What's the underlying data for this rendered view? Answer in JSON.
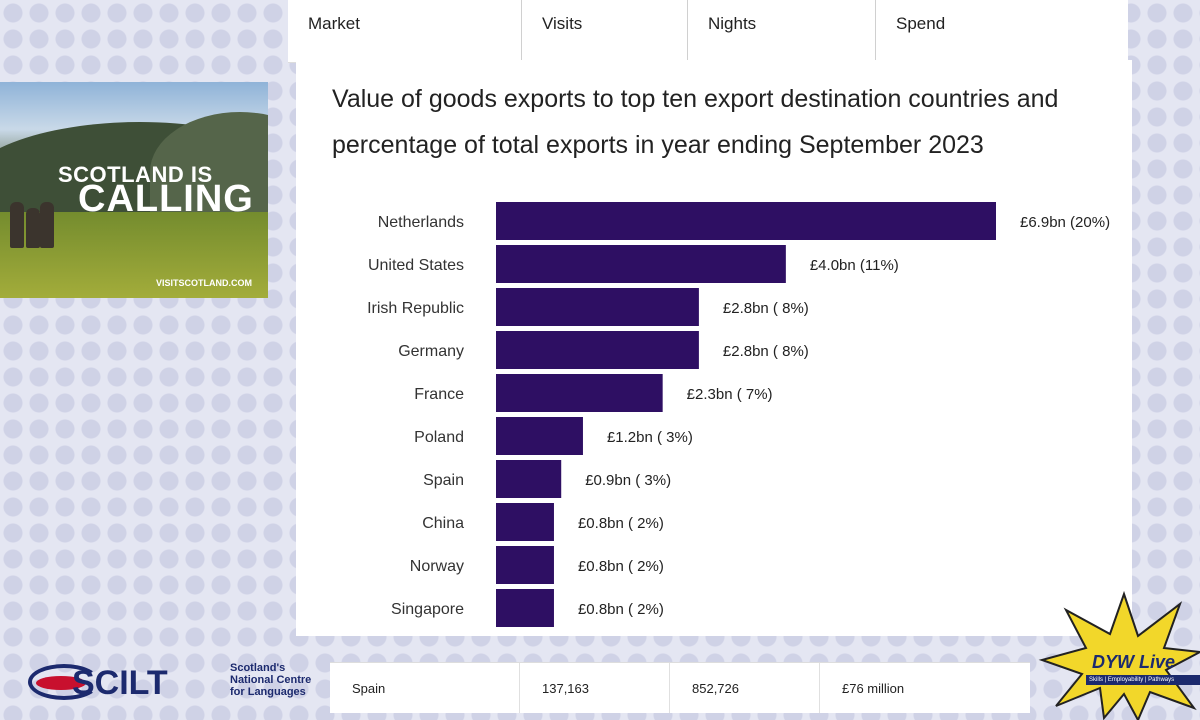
{
  "table": {
    "headers": [
      "Market",
      "Visits",
      "Nights",
      "Spend"
    ],
    "row": [
      "Spain",
      "137,163",
      "852,726",
      "£76 million"
    ]
  },
  "banner": {
    "line1": "SCOTLAND IS",
    "line2": "CALLING",
    "url": "VISITSCOTLAND.COM"
  },
  "logos": {
    "scilt_name": "SCILT",
    "scilt_sub_1": "Scotland's",
    "scilt_sub_2": "National Centre",
    "scilt_sub_3": "for Languages",
    "dyw_name": "DYW Live",
    "dyw_tag": "Skills | Employability | Pathways"
  },
  "colors": {
    "bar": "#2e0f63",
    "panel": "#ffffff"
  },
  "chart_data": {
    "type": "bar",
    "orientation": "horizontal",
    "title": "Value of goods exports to top ten export destination countries and percentage of total exports in year ending September 2023",
    "categories": [
      "Netherlands",
      "United States",
      "Irish Republic",
      "Germany",
      "France",
      "Poland",
      "Spain",
      "China",
      "Norway",
      "Singapore"
    ],
    "values": [
      6.9,
      4.0,
      2.8,
      2.8,
      2.3,
      1.2,
      0.9,
      0.8,
      0.8,
      0.8
    ],
    "percentages": [
      20,
      11,
      8,
      8,
      7,
      3,
      3,
      2,
      2,
      2
    ],
    "labels": [
      "£6.9bn (20%)",
      "£4.0bn (11%)",
      "£2.8bn ( 8%)",
      "£2.8bn ( 8%)",
      "£2.3bn ( 7%)",
      "£1.2bn ( 3%)",
      "£0.9bn ( 3%)",
      "£0.8bn ( 2%)",
      "£0.8bn ( 2%)",
      "£0.8bn ( 2%)"
    ],
    "unit": "£bn",
    "xlim": [
      0,
      6.9
    ],
    "grid": false,
    "legend": "none"
  }
}
